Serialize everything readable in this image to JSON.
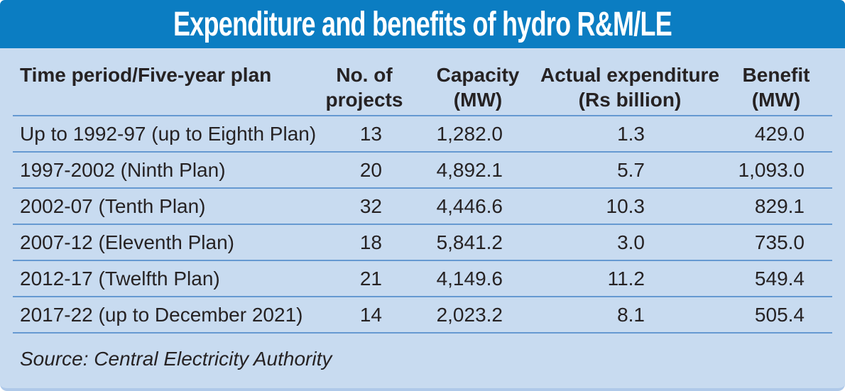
{
  "title": "Expenditure and benefits of hydro R&M/LE",
  "colors": {
    "title_bar": "#0b7dc2",
    "body_bg": "#c8dbf0",
    "rule": "#6699d1",
    "text": "#262223",
    "bottom_edge": "#afc9e9"
  },
  "table": {
    "headers": [
      [
        "Time period/Five-year plan",
        ""
      ],
      [
        "No. of",
        "projects"
      ],
      [
        "Capacity",
        "(MW)"
      ],
      [
        "Actual expenditure",
        "(Rs billion)"
      ],
      [
        "Benefit",
        "(MW)"
      ]
    ],
    "rows": [
      [
        "Up to 1992-97 (up to Eighth Plan)",
        "13",
        "1,282.0",
        "1.3",
        "429.0"
      ],
      [
        "1997-2002 (Ninth Plan)",
        "20",
        "4,892.1",
        "5.7",
        "1,093.0"
      ],
      [
        "2002-07 (Tenth Plan)",
        "32",
        "4,446.6",
        "10.3",
        "829.1"
      ],
      [
        "2007-12 (Eleventh Plan)",
        "18",
        "5,841.2",
        "3.0",
        "735.0"
      ],
      [
        "2012-17 (Twelfth Plan)",
        "21",
        "4,149.6",
        "11.2",
        "549.4"
      ],
      [
        "2017-22 (up to December 2021)",
        "14",
        "2,023.2",
        "8.1",
        "505.4"
      ]
    ]
  },
  "source": "Source: Central Electricity Authority",
  "chart_data": {
    "type": "table",
    "title": "Expenditure and benefits of hydro R&M/LE",
    "columns": [
      "Time period/Five-year plan",
      "No. of projects",
      "Capacity (MW)",
      "Actual expenditure (Rs billion)",
      "Benefit (MW)"
    ],
    "rows": [
      {
        "period": "Up to 1992-97 (up to Eighth Plan)",
        "projects": 13,
        "capacity_mw": 1282.0,
        "expenditure_rs_billion": 1.3,
        "benefit_mw": 429.0
      },
      {
        "period": "1997-2002 (Ninth Plan)",
        "projects": 20,
        "capacity_mw": 4892.1,
        "expenditure_rs_billion": 5.7,
        "benefit_mw": 1093.0
      },
      {
        "period": "2002-07 (Tenth Plan)",
        "projects": 32,
        "capacity_mw": 4446.6,
        "expenditure_rs_billion": 10.3,
        "benefit_mw": 829.1
      },
      {
        "period": "2007-12 (Eleventh Plan)",
        "projects": 18,
        "capacity_mw": 5841.2,
        "expenditure_rs_billion": 3.0,
        "benefit_mw": 735.0
      },
      {
        "period": "2012-17 (Twelfth Plan)",
        "projects": 21,
        "capacity_mw": 4149.6,
        "expenditure_rs_billion": 11.2,
        "benefit_mw": 549.4
      },
      {
        "period": "2017-22 (up to December 2021)",
        "projects": 14,
        "capacity_mw": 2023.2,
        "expenditure_rs_billion": 8.1,
        "benefit_mw": 505.4
      }
    ],
    "source": "Central Electricity Authority"
  }
}
